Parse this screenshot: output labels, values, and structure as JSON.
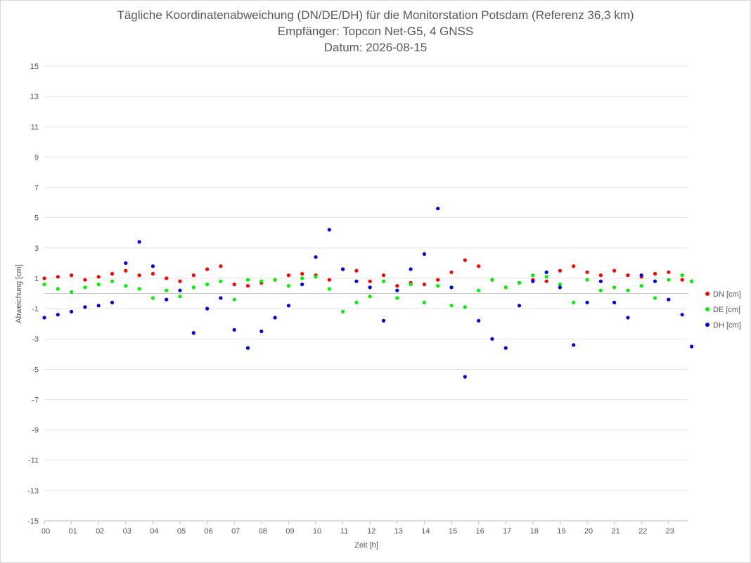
{
  "title": {
    "line1": "Tägliche Koordinatenabweichung (DN/DE/DH) für die Monitorstation Potsdam (Referenz 36,3 km)",
    "line2": "Empfänger: Topcon Net-G5, 4 GNSS",
    "line3": "Datum: 2026-08-15"
  },
  "chart_data": {
    "type": "scatter",
    "xlabel": "Zeit [h]",
    "ylabel": "Abweichung [cm]",
    "xlim": [
      0,
      24
    ],
    "ylim": [
      -15,
      15
    ],
    "x_ticks": [
      "00",
      "01",
      "02",
      "03",
      "04",
      "05",
      "06",
      "07",
      "08",
      "09",
      "10",
      "11",
      "12",
      "13",
      "14",
      "15",
      "16",
      "17",
      "18",
      "19",
      "20",
      "21",
      "22",
      "23"
    ],
    "y_ticks": [
      15,
      13,
      11,
      9,
      7,
      5,
      3,
      1,
      -1,
      -3,
      -5,
      -7,
      -9,
      -11,
      -13,
      -15
    ],
    "legend_position": "right",
    "grid": true,
    "series": [
      {
        "name": "DN [cm]",
        "color": "#ff0000",
        "x": [
          0.0,
          0.5,
          1.0,
          1.5,
          2.0,
          2.5,
          3.0,
          3.5,
          4.0,
          4.5,
          5.0,
          5.5,
          6.0,
          6.5,
          7.0,
          7.5,
          8.0,
          8.5,
          9.0,
          9.5,
          10.0,
          10.5,
          11.0,
          11.5,
          12.0,
          12.5,
          13.0,
          13.5,
          14.0,
          14.5,
          15.0,
          15.5,
          16.0,
          16.5,
          17.0,
          17.5,
          18.0,
          18.5,
          19.0,
          19.5,
          20.0,
          20.5,
          21.0,
          21.5,
          22.0,
          22.5,
          23.0,
          23.5,
          23.85
        ],
        "y": [
          1.0,
          1.1,
          1.2,
          0.9,
          1.1,
          1.3,
          1.5,
          1.2,
          1.3,
          1.0,
          0.8,
          1.2,
          1.6,
          1.8,
          0.6,
          0.5,
          0.7,
          0.9,
          1.2,
          1.3,
          1.2,
          0.9,
          1.6,
          1.5,
          0.8,
          1.2,
          0.5,
          0.7,
          0.6,
          0.9,
          1.4,
          2.2,
          1.8,
          0.9,
          0.4,
          0.7,
          0.9,
          0.8,
          1.5,
          1.8,
          1.4,
          1.2,
          1.5,
          1.2,
          1.1,
          1.3,
          1.4,
          0.9,
          0.8
        ]
      },
      {
        "name": "DE [cm]",
        "color": "#00ee00",
        "x": [
          0.0,
          0.5,
          1.0,
          1.5,
          2.0,
          2.5,
          3.0,
          3.5,
          4.0,
          4.5,
          5.0,
          5.5,
          6.0,
          6.5,
          7.0,
          7.5,
          8.0,
          8.5,
          9.0,
          9.5,
          10.0,
          10.5,
          11.0,
          11.5,
          12.0,
          12.5,
          13.0,
          13.5,
          14.0,
          14.5,
          15.0,
          15.5,
          16.0,
          16.5,
          17.0,
          17.5,
          18.0,
          18.5,
          19.0,
          19.5,
          20.0,
          20.5,
          21.0,
          21.5,
          22.0,
          22.5,
          23.0,
          23.5,
          23.85
        ],
        "y": [
          0.6,
          0.3,
          0.1,
          0.4,
          0.6,
          0.8,
          0.5,
          0.3,
          -0.3,
          0.2,
          -0.2,
          0.4,
          0.6,
          0.8,
          -0.4,
          0.9,
          0.8,
          0.9,
          0.5,
          1.0,
          1.1,
          0.3,
          -1.2,
          -0.6,
          -0.2,
          0.8,
          -0.3,
          0.6,
          -0.6,
          0.5,
          -0.8,
          -0.9,
          0.2,
          0.9,
          0.4,
          0.7,
          1.2,
          1.1,
          0.6,
          -0.6,
          0.9,
          0.2,
          0.4,
          0.2,
          0.5,
          -0.3,
          0.9,
          1.2,
          0.8
        ]
      },
      {
        "name": "DH [cm]",
        "color": "#0000dd",
        "x": [
          0.0,
          0.5,
          1.0,
          1.5,
          2.0,
          2.5,
          3.0,
          3.5,
          4.0,
          4.5,
          5.0,
          5.5,
          6.0,
          6.5,
          7.0,
          7.5,
          8.0,
          8.5,
          9.0,
          9.5,
          10.0,
          10.5,
          11.0,
          11.5,
          12.0,
          12.5,
          13.0,
          13.5,
          14.0,
          14.5,
          15.0,
          15.5,
          16.0,
          16.5,
          17.0,
          17.5,
          18.0,
          18.5,
          19.0,
          19.5,
          20.0,
          20.5,
          21.0,
          21.5,
          22.0,
          22.5,
          23.0,
          23.5,
          23.85
        ],
        "y": [
          -1.6,
          -1.4,
          -1.2,
          -0.9,
          -0.8,
          -0.6,
          2.0,
          3.4,
          1.8,
          -0.4,
          0.2,
          -2.6,
          -1.0,
          -0.3,
          -2.4,
          -3.6,
          -2.5,
          -1.6,
          -0.8,
          0.6,
          2.4,
          4.2,
          1.6,
          0.8,
          0.4,
          -1.8,
          0.2,
          1.6,
          2.6,
          5.6,
          0.4,
          -5.5,
          -1.8,
          -3.0,
          -3.6,
          -0.8,
          0.8,
          1.4,
          0.4,
          -3.4,
          -0.6,
          0.8,
          -0.6,
          -1.6,
          1.2,
          0.8,
          -0.4,
          -1.4,
          -3.5
        ]
      }
    ]
  }
}
